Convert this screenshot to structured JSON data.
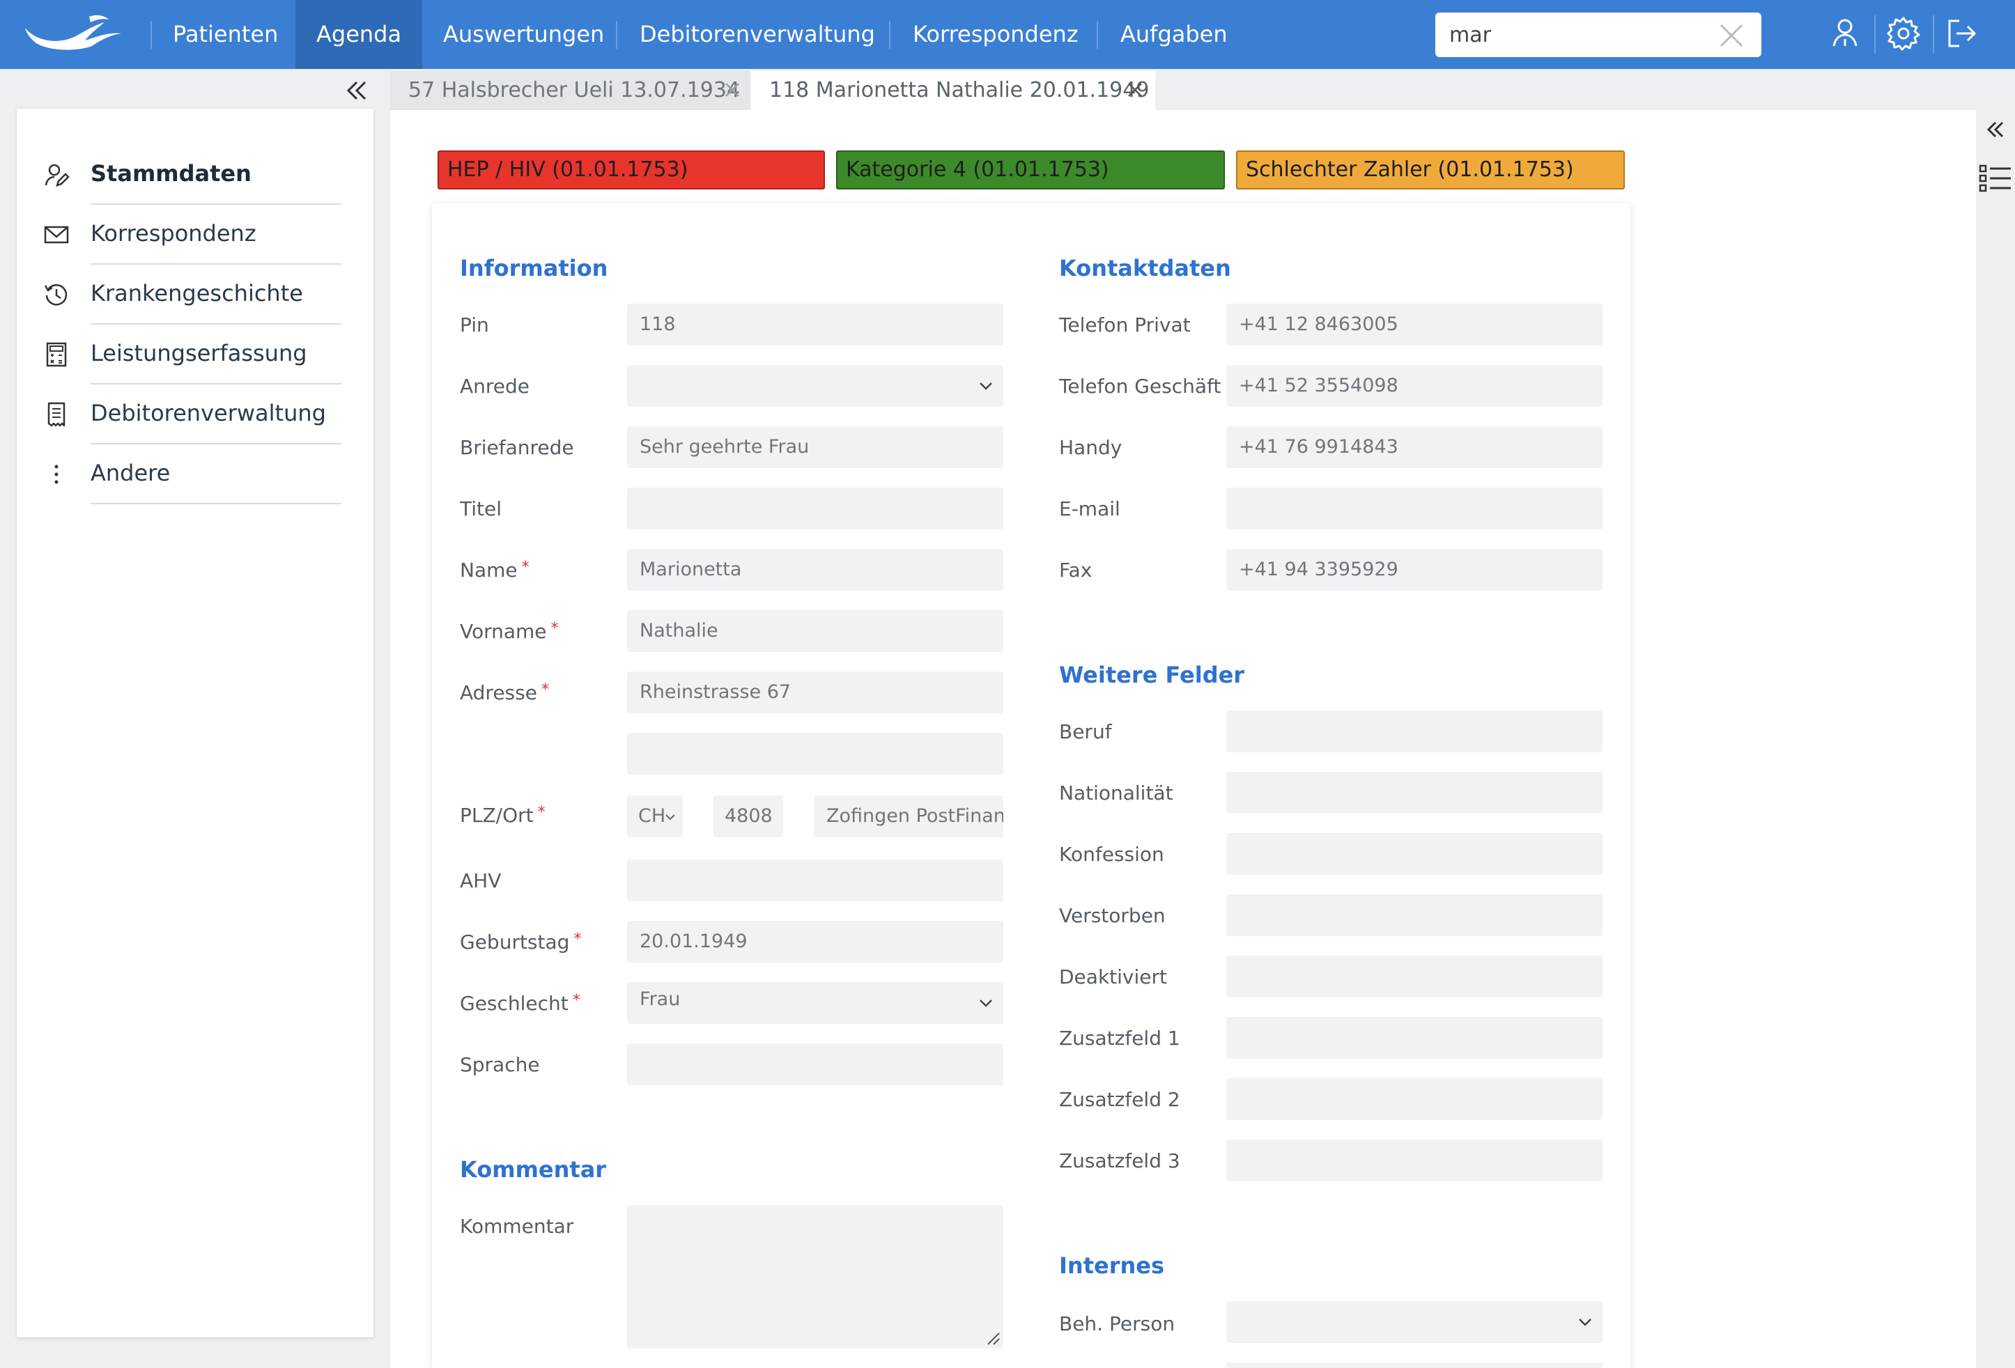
{
  "nav": {
    "items": [
      "Patienten",
      "Agenda",
      "Auswertungen",
      "Debitorenverwaltung",
      "Korrespondenz",
      "Aufgaben"
    ],
    "active": "Agenda",
    "search_value": "mar",
    "icons": [
      "person-icon",
      "gear-icon",
      "logout-icon"
    ],
    "accent": "#3b7fd4"
  },
  "sidebar": {
    "items": [
      {
        "label": "Stammdaten",
        "icon": "person-edit-icon"
      },
      {
        "label": "Korrespondenz",
        "icon": "mail-icon"
      },
      {
        "label": "Krankengeschichte",
        "icon": "history-icon"
      },
      {
        "label": "Leistungserfassung",
        "icon": "calculator-icon"
      },
      {
        "label": "Debitorenverwaltung",
        "icon": "receipt-icon"
      },
      {
        "label": "Andere",
        "icon": "more-vertical-icon"
      }
    ],
    "active": "Stammdaten"
  },
  "tabs": [
    {
      "label": "57 Halsbrecher Ueli 13.07.1934",
      "active": false
    },
    {
      "label": "118 Marionetta Nathalie 20.01.1949",
      "active": true
    }
  ],
  "flags": [
    {
      "label": "HEP / HIV (01.01.1753)",
      "color": "#e8352c"
    },
    {
      "label": "Kategorie 4 (01.01.1753)",
      "color": "#3c8a2a"
    },
    {
      "label": "Schlechter Zahler (01.01.1753)",
      "color": "#f0aa3c"
    }
  ],
  "information": {
    "title": "Information",
    "pin": {
      "label": "Pin",
      "value": "118"
    },
    "anrede": {
      "label": "Anrede",
      "value": ""
    },
    "briefanrede": {
      "label": "Briefanrede",
      "value": "Sehr geehrte Frau"
    },
    "titel": {
      "label": "Titel",
      "value": ""
    },
    "name": {
      "label": "Name",
      "value": "Marionetta"
    },
    "vorname": {
      "label": "Vorname",
      "value": "Nathalie"
    },
    "adresse": {
      "label": "Adresse",
      "value": "Rheinstrasse 67",
      "value2": ""
    },
    "plz_ort": {
      "label": "PLZ/Ort",
      "country": "CH",
      "plz": "4808",
      "ort": "Zofingen PostFinance"
    },
    "ahv": {
      "label": "AHV",
      "value": ""
    },
    "geburtstag": {
      "label": "Geburtstag",
      "value": "20.01.1949"
    },
    "geschlecht": {
      "label": "Geschlecht",
      "value": "Frau"
    },
    "sprache": {
      "label": "Sprache",
      "value": ""
    }
  },
  "kommentar": {
    "title": "Kommentar",
    "label": "Kommentar",
    "value": ""
  },
  "kontaktdaten": {
    "title": "Kontaktdaten",
    "telefon_privat": {
      "label": "Telefon Privat",
      "value": "+41 12 8463005"
    },
    "telefon_geschaeft": {
      "label": "Telefon Geschäft",
      "value": "+41 52 3554098"
    },
    "handy": {
      "label": "Handy",
      "value": "+41 76 9914843"
    },
    "email": {
      "label": "E-mail",
      "value": ""
    },
    "fax": {
      "label": "Fax",
      "value": "+41 94 3395929"
    }
  },
  "weitere": {
    "title": "Weitere Felder",
    "fields": [
      {
        "label": "Beruf",
        "value": ""
      },
      {
        "label": "Nationalität",
        "value": ""
      },
      {
        "label": "Konfession",
        "value": ""
      },
      {
        "label": "Verstorben",
        "value": ""
      },
      {
        "label": "Deaktiviert",
        "value": ""
      },
      {
        "label": "Zusatzfeld 1",
        "value": ""
      },
      {
        "label": "Zusatzfeld 2",
        "value": ""
      },
      {
        "label": "Zusatzfeld 3",
        "value": ""
      }
    ]
  },
  "internes": {
    "title": "Internes",
    "beh_person": {
      "label": "Beh. Person",
      "value": ""
    }
  }
}
